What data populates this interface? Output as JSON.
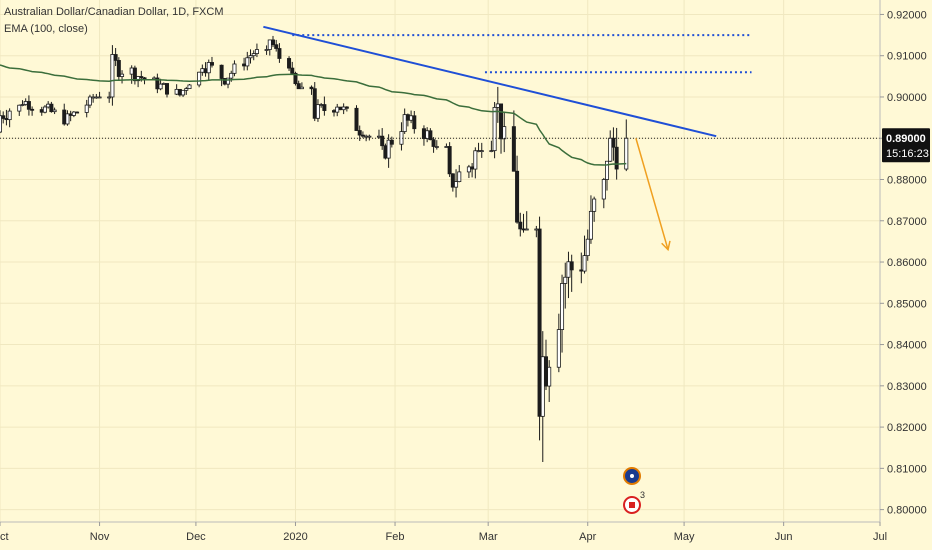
{
  "legend": {
    "symbol_line": "Australian Dollar/Canadian Dollar, 1D, FXCM",
    "indicator_line": "EMA (100, close)"
  },
  "price_tag": {
    "price": "0.89000",
    "countdown": "15:16:23"
  },
  "events": {
    "badge_count": "3"
  },
  "colors": {
    "background": "#fff9d6",
    "candle": "#1c1c1c",
    "ema": "#3b6e3b",
    "trendline": "#1f4fd6",
    "dotted_levels": "#1f4fd6",
    "arrow": "#f0a020",
    "price_tag_bg": "#111111"
  },
  "chart_data": {
    "type": "candlestick",
    "title": "Australian Dollar/Canadian Dollar, 1D, FXCM",
    "indicator": "EMA (100, close)",
    "y_axis": {
      "ticks": [
        "0.92000",
        "0.91000",
        "0.90000",
        "0.89000",
        "0.88000",
        "0.87000",
        "0.86000",
        "0.85000",
        "0.84000",
        "0.83000",
        "0.82000",
        "0.81000",
        "0.80000"
      ],
      "range": [
        0.797,
        0.9235
      ],
      "position": "right"
    },
    "x_axis": {
      "ticks": [
        "Oct",
        "Nov",
        "Dec",
        "2020",
        "Feb",
        "Mar",
        "Apr",
        "May",
        "Jun",
        "Jul"
      ],
      "range": [
        "2019-10-01",
        "2020-07-01"
      ]
    },
    "current_price": 0.89,
    "ohlc_daily_approx": [
      {
        "date": "2019-10-01",
        "o": 0.8915,
        "h": 0.898,
        "l": 0.8845,
        "c": 0.8955
      },
      {
        "date": "2019-10-08",
        "o": 0.8955,
        "h": 0.901,
        "l": 0.892,
        "c": 0.899
      },
      {
        "date": "2019-10-15",
        "o": 0.899,
        "h": 0.9025,
        "l": 0.893,
        "c": 0.897
      },
      {
        "date": "2019-10-22",
        "o": 0.897,
        "h": 0.9005,
        "l": 0.89,
        "c": 0.8945
      },
      {
        "date": "2019-10-29",
        "o": 0.8945,
        "h": 0.9,
        "l": 0.8905,
        "c": 0.899
      },
      {
        "date": "2019-11-05",
        "o": 0.899,
        "h": 0.9115,
        "l": 0.8975,
        "c": 0.908
      },
      {
        "date": "2019-11-12",
        "o": 0.908,
        "h": 0.911,
        "l": 0.902,
        "c": 0.9055
      },
      {
        "date": "2019-11-19",
        "o": 0.9055,
        "h": 0.908,
        "l": 0.8995,
        "c": 0.903
      },
      {
        "date": "2019-11-26",
        "o": 0.903,
        "h": 0.906,
        "l": 0.898,
        "c": 0.9005
      },
      {
        "date": "2019-12-03",
        "o": 0.9005,
        "h": 0.9105,
        "l": 0.8985,
        "c": 0.9085
      },
      {
        "date": "2019-12-10",
        "o": 0.9085,
        "h": 0.911,
        "l": 0.9015,
        "c": 0.9045
      },
      {
        "date": "2019-12-17",
        "o": 0.9045,
        "h": 0.9115,
        "l": 0.9025,
        "c": 0.9095
      },
      {
        "date": "2019-12-24",
        "o": 0.9095,
        "h": 0.9155,
        "l": 0.907,
        "c": 0.914
      },
      {
        "date": "2019-12-31",
        "o": 0.914,
        "h": 0.915,
        "l": 0.902,
        "c": 0.9035
      },
      {
        "date": "2020-01-07",
        "o": 0.9035,
        "h": 0.906,
        "l": 0.8935,
        "c": 0.896
      },
      {
        "date": "2020-01-14",
        "o": 0.896,
        "h": 0.901,
        "l": 0.89,
        "c": 0.8985
      },
      {
        "date": "2020-01-21",
        "o": 0.8985,
        "h": 0.9,
        "l": 0.8905,
        "c": 0.892
      },
      {
        "date": "2020-01-28",
        "o": 0.892,
        "h": 0.896,
        "l": 0.882,
        "c": 0.886
      },
      {
        "date": "2020-02-04",
        "o": 0.886,
        "h": 0.896,
        "l": 0.884,
        "c": 0.8945
      },
      {
        "date": "2020-02-11",
        "o": 0.8945,
        "h": 0.8975,
        "l": 0.888,
        "c": 0.891
      },
      {
        "date": "2020-02-18",
        "o": 0.891,
        "h": 0.8935,
        "l": 0.876,
        "c": 0.879
      },
      {
        "date": "2020-02-25",
        "o": 0.879,
        "h": 0.887,
        "l": 0.865,
        "c": 0.884
      },
      {
        "date": "2020-03-03",
        "o": 0.884,
        "h": 0.9065,
        "l": 0.882,
        "c": 0.901
      },
      {
        "date": "2020-03-10",
        "o": 0.901,
        "h": 0.903,
        "l": 0.868,
        "c": 0.872
      },
      {
        "date": "2020-03-17",
        "o": 0.872,
        "h": 0.874,
        "l": 0.807,
        "c": 0.833
      },
      {
        "date": "2020-03-24",
        "o": 0.833,
        "h": 0.862,
        "l": 0.823,
        "c": 0.856
      },
      {
        "date": "2020-03-31",
        "o": 0.856,
        "h": 0.88,
        "l": 0.848,
        "c": 0.862
      },
      {
        "date": "2020-04-07",
        "o": 0.862,
        "h": 0.89,
        "l": 0.856,
        "c": 0.887
      },
      {
        "date": "2020-04-14",
        "o": 0.887,
        "h": 0.896,
        "l": 0.886,
        "c": 0.89
      }
    ],
    "ema_100": {
      "name": "EMA (100, close)",
      "start": 0.908,
      "end": 0.8825
    },
    "annotations": {
      "trendline": {
        "from": {
          "date": "2019-12-22",
          "price": 0.917
        },
        "to": {
          "date": "2020-05-11",
          "price": 0.8905
        }
      },
      "dotted_levels": [
        {
          "price": 0.915,
          "from": "2019-12-31",
          "to": "2020-05-22"
        },
        {
          "price": 0.906,
          "from": "2020-02-29",
          "to": "2020-05-22"
        }
      ],
      "projection_arrow": {
        "from": {
          "date": "2020-04-16",
          "price": 0.89
        },
        "to": {
          "date": "2020-04-26",
          "price": 0.863
        }
      }
    }
  }
}
